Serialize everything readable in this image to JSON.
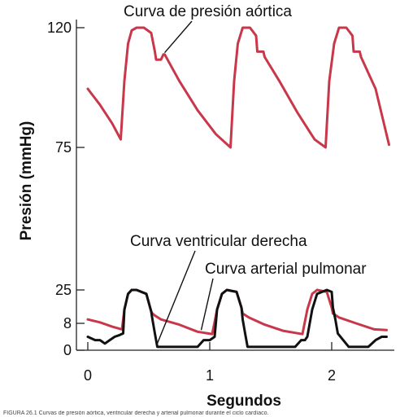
{
  "chart_data": {
    "type": "line",
    "xlabel": "Segundos",
    "ylabel": "Presión (mmHg)",
    "x_ticks": [
      "0",
      "1",
      "2"
    ],
    "y_ticks": [
      "0",
      "8",
      "25",
      "75",
      "120"
    ],
    "xlim": [
      0,
      2.45
    ],
    "ylim_display": [
      0,
      120
    ],
    "scale_note_hidden": "",
    "series": [
      {
        "name": "Curva de presión aórtica",
        "color": "#c8374a",
        "x": [
          0.0,
          0.1,
          0.2,
          0.27,
          0.3,
          0.33,
          0.36,
          0.4,
          0.46,
          0.52,
          0.55,
          0.56,
          0.6,
          0.62,
          0.63,
          0.75,
          0.9,
          1.05,
          1.17,
          1.2,
          1.23,
          1.27,
          1.33,
          1.38,
          1.39,
          1.42,
          1.44,
          1.45,
          1.57,
          1.72,
          1.86,
          1.95,
          1.98,
          2.02,
          2.06,
          2.12,
          2.17,
          2.18,
          2.21,
          2.23,
          2.24,
          2.36,
          2.47
        ],
        "y": [
          97,
          91,
          84,
          78,
          100,
          114,
          119,
          120,
          120,
          118,
          111,
          108,
          108,
          110,
          110,
          100,
          89,
          80,
          75,
          100,
          114,
          120,
          120,
          117,
          111,
          111,
          111,
          109,
          100,
          88,
          78,
          75,
          100,
          114,
          120,
          120,
          117,
          111,
          111,
          111,
          109,
          97,
          76
        ]
      },
      {
        "name": "Curva arterial pulmonar",
        "color": "#c8374a",
        "x": [
          0.0,
          0.1,
          0.2,
          0.28,
          0.3,
          0.33,
          0.36,
          0.4,
          0.48,
          0.52,
          0.53,
          0.55,
          0.6,
          0.75,
          0.9,
          1.02,
          1.06,
          1.1,
          1.14,
          1.22,
          1.26,
          1.27,
          1.32,
          1.45,
          1.6,
          1.76,
          1.8,
          1.84,
          1.88,
          1.96,
          2.0,
          2.01,
          2.06,
          2.2,
          2.35,
          2.45
        ],
        "y": [
          10,
          8.5,
          7,
          6.2,
          15,
          23,
          25,
          25,
          23,
          14,
          13,
          12,
          10,
          7.6,
          5.5,
          4.8,
          15,
          23,
          25,
          24,
          16,
          13,
          11,
          7.6,
          5.8,
          4.8,
          15,
          23,
          25,
          24,
          16,
          13,
          11,
          8.0,
          6.2,
          6.0
        ]
      },
      {
        "name": "Curva ventricular derecha",
        "color": "#111111",
        "x": [
          0.0,
          0.06,
          0.1,
          0.14,
          0.18,
          0.22,
          0.26,
          0.29,
          0.3,
          0.33,
          0.36,
          0.4,
          0.48,
          0.52,
          0.53,
          0.55,
          0.57,
          0.6,
          0.7,
          0.8,
          0.9,
          0.95,
          1.0,
          1.04,
          1.06,
          1.1,
          1.14,
          1.22,
          1.26,
          1.27,
          1.29,
          1.31,
          1.4,
          1.5,
          1.6,
          1.7,
          1.75,
          1.78,
          1.8,
          1.84,
          1.88,
          1.96,
          2.0,
          2.01,
          2.03,
          2.05,
          2.14,
          2.24,
          2.3,
          2.36,
          2.41,
          2.45
        ],
        "y": [
          4,
          3,
          3,
          2,
          3,
          4,
          4.5,
          5,
          15,
          23,
          25,
          25,
          23,
          14,
          10,
          5,
          1,
          1,
          1,
          1,
          1,
          3,
          3,
          4,
          15,
          23,
          25,
          24,
          16,
          10,
          5,
          1,
          1,
          1,
          1,
          1,
          3,
          3,
          4,
          15,
          23,
          25,
          24,
          16,
          10,
          5,
          1,
          1,
          1,
          3,
          4,
          4
        ]
      }
    ],
    "annotations": [
      {
        "text": "Curva de presión aórtica",
        "target": "aortic"
      },
      {
        "text": "Curva ventricular derecha",
        "target": "rv"
      },
      {
        "text": "Curva arterial pulmonar",
        "target": "pa"
      }
    ]
  },
  "caption": "FIGURA 26.1 Curvas de presión aórtica, ventricular derecha y arterial pulmonar durante el ciclo cardíaco."
}
